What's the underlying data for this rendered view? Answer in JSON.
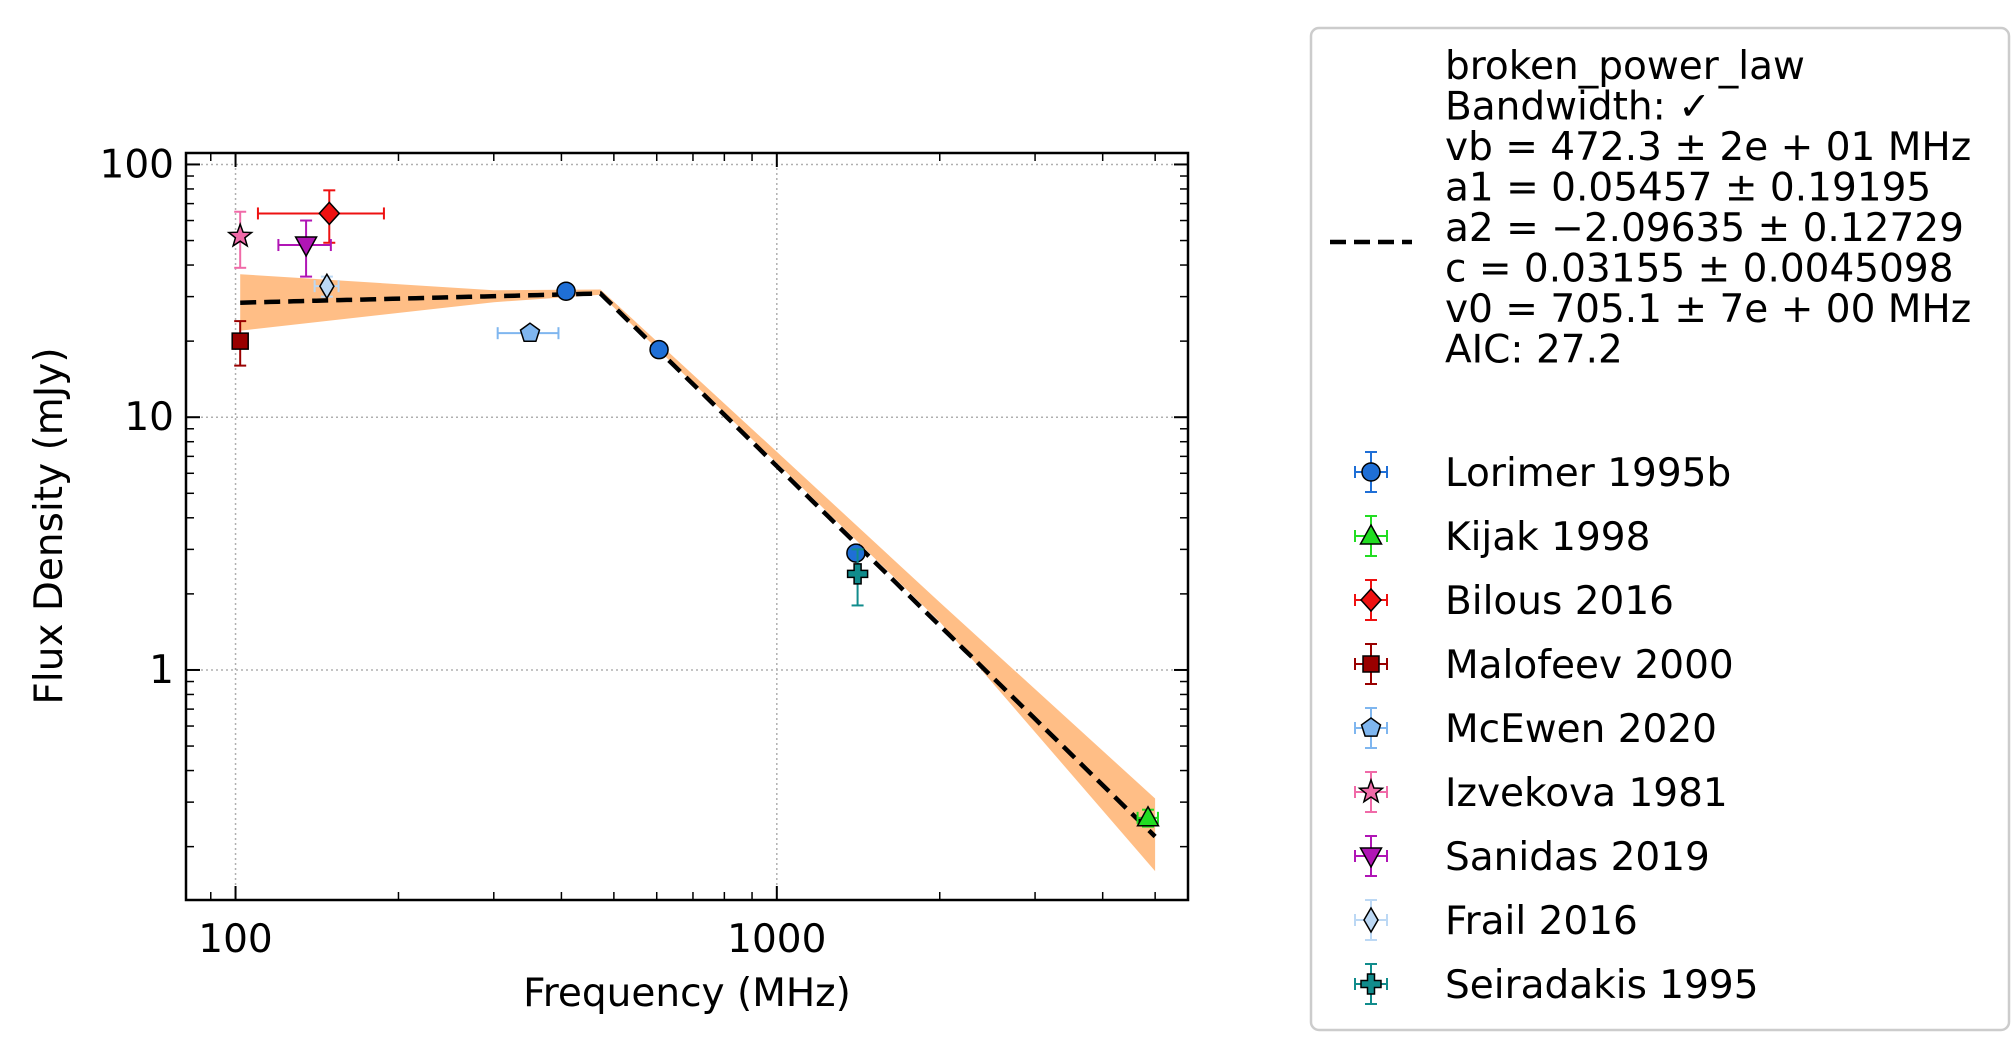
{
  "chart_data": {
    "type": "scatter",
    "xlabel": "Frequency (MHz)",
    "ylabel": "Flux Density (mJy)",
    "x_scale": "log",
    "y_scale": "log",
    "xlim": [
      81,
      5750
    ],
    "ylim": [
      0.123,
      111
    ],
    "x_ticks": [
      {
        "value": 100,
        "label": "100"
      },
      {
        "value": 1000,
        "label": "1000"
      }
    ],
    "y_ticks": [
      {
        "value": 1,
        "label": "1"
      },
      {
        "value": 10,
        "label": "10"
      },
      {
        "value": 100,
        "label": "100"
      }
    ],
    "grid": true,
    "legend_position": "outside right",
    "fit": {
      "model": "broken_power_law",
      "label_lines": [
        "broken_power_law",
        "Bandwidth: ✓",
        "vb = 472.3 ± 2e + 01 MHz",
        "a1 = 0.05457 ± 0.19195",
        "a2 = −2.09635 ± 0.12729",
        "c = 0.03155 ± 0.0045098",
        "v0 = 705.1 ± 7e + 00 MHz",
        "AIC: 27.2"
      ],
      "vb": 472.3,
      "a1": 0.05457,
      "a2": -2.09635,
      "c": 0.03155,
      "v0": 705.1,
      "x_range": [
        102,
        5000
      ],
      "line_color": "#000000",
      "band_color": "#ffbe86",
      "band": [
        {
          "x": 102,
          "lo": 22.0,
          "hi": 36.8
        },
        {
          "x": 300,
          "lo": 28.5,
          "hi": 31.8
        },
        {
          "x": 472.3,
          "lo": 30.5,
          "hi": 32.0
        },
        {
          "x": 1000,
          "lo": 6.6,
          "hi": 7.3
        },
        {
          "x": 2000,
          "lo": 1.55,
          "hi": 1.85
        },
        {
          "x": 5000,
          "lo": 0.16,
          "hi": 0.31
        }
      ]
    },
    "series": [
      {
        "name": "Lorimer 1995b",
        "marker": "circle",
        "color": "#1f6fd6",
        "points": [
          {
            "x": 408,
            "y": 31.5,
            "yerr": [
              0.8,
              0.8
            ]
          },
          {
            "x": 606,
            "y": 18.5,
            "yerr": [
              0.6,
              0.6
            ]
          },
          {
            "x": 1400,
            "y": 2.9,
            "yerr": [
              0.15,
              0.15
            ]
          }
        ]
      },
      {
        "name": "Kijak 1998",
        "marker": "triangle-up",
        "color": "#22dd22",
        "points": [
          {
            "x": 4850,
            "y": 0.26,
            "xerr": [
              210,
              210
            ],
            "yerr": [
              0.02,
              0.02
            ]
          }
        ]
      },
      {
        "name": "Bilous 2016",
        "marker": "diamond",
        "color": "#ee1111",
        "points": [
          {
            "x": 149,
            "y": 64,
            "xerr": [
              39,
              39
            ],
            "yerr": [
              15,
              15
            ]
          }
        ]
      },
      {
        "name": "Malofeev 2000",
        "marker": "square",
        "color": "#990000",
        "points": [
          {
            "x": 102,
            "y": 20,
            "yerr": [
              4,
              4
            ]
          }
        ]
      },
      {
        "name": "McEwen 2020",
        "marker": "pentagon",
        "color": "#7fb6ef",
        "points": [
          {
            "x": 350,
            "y": 21.5,
            "xerr": [
              45,
              45
            ],
            "yerr": [
              0.8,
              0.8
            ]
          }
        ]
      },
      {
        "name": "Izvekova 1981",
        "marker": "star",
        "color": "#f06aa8",
        "points": [
          {
            "x": 102,
            "y": 52,
            "yerr": [
              13,
              13
            ]
          }
        ]
      },
      {
        "name": "Sanidas 2019",
        "marker": "triangle-down",
        "color": "#b015b5",
        "points": [
          {
            "x": 135,
            "y": 48,
            "xerr": [
              15,
              15
            ],
            "yerr": [
              12,
              12
            ]
          }
        ]
      },
      {
        "name": "Frail 2016",
        "marker": "thin-diamond",
        "color": "#bcd8f4",
        "points": [
          {
            "x": 147.5,
            "y": 33,
            "xerr": [
              7.5,
              7.5
            ],
            "yerr": [
              3,
              3
            ]
          }
        ]
      },
      {
        "name": "Seiradakis 1995",
        "marker": "plus",
        "color": "#118c8c",
        "points": [
          {
            "x": 1410,
            "y": 2.4,
            "yerr": [
              0.6,
              0.6
            ]
          }
        ]
      }
    ]
  }
}
